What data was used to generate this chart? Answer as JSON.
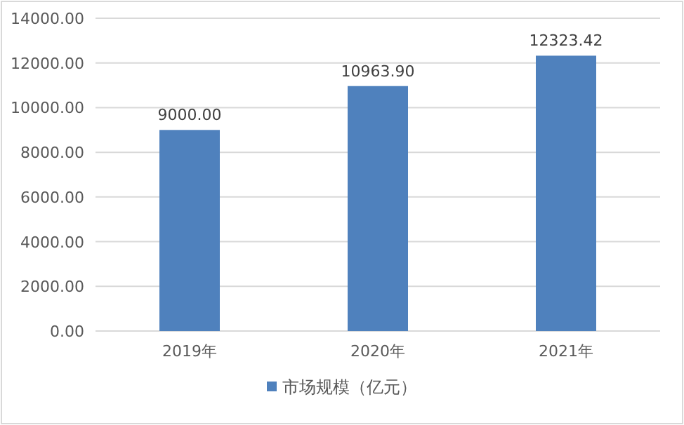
{
  "chart_data": {
    "type": "bar",
    "categories": [
      "2019年",
      "2020年",
      "2021年"
    ],
    "series": [
      {
        "name": "市场规模（亿元）",
        "color": "#4f81bd",
        "values": [
          9000.0,
          10963.9,
          12323.42
        ],
        "value_labels": [
          "9000.00",
          "10963.90",
          "12323.42"
        ]
      }
    ],
    "ylim": [
      0,
      14000
    ],
    "yticks": [
      {
        "value": 0,
        "label": "0.00"
      },
      {
        "value": 2000,
        "label": "2000.00"
      },
      {
        "value": 4000,
        "label": "4000.00"
      },
      {
        "value": 6000,
        "label": "6000.00"
      },
      {
        "value": 8000,
        "label": "8000.00"
      },
      {
        "value": 10000,
        "label": "10000.00"
      },
      {
        "value": 12000,
        "label": "12000.00"
      },
      {
        "value": 14000,
        "label": "14000.00"
      }
    ],
    "grid": "y",
    "legend": "bottom"
  }
}
